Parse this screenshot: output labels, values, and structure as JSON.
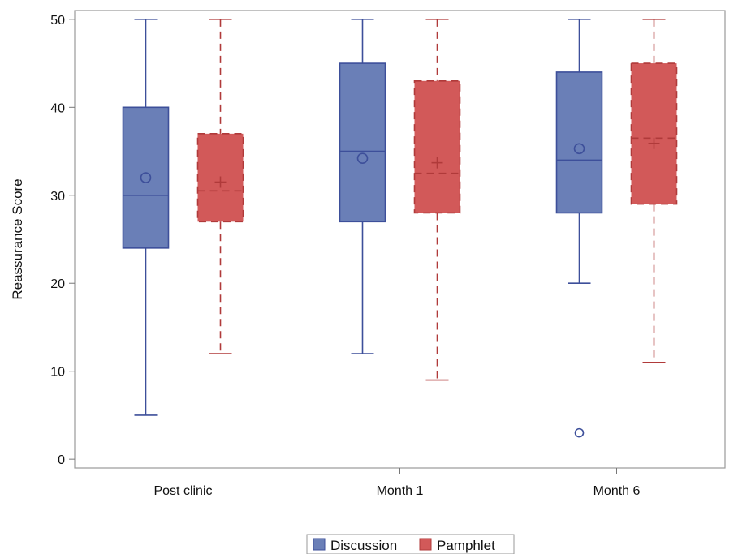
{
  "chart_data": {
    "type": "box",
    "ylabel": "Reassurance Score",
    "xlabel": "",
    "ylim": [
      -1,
      51
    ],
    "yticks": [
      0,
      10,
      20,
      30,
      40,
      50
    ],
    "categories": [
      "Post clinic",
      "Month 1",
      "Month 6"
    ],
    "series": [
      {
        "name": "Discussion",
        "color": "#6A7FB7",
        "stroke": "#3D4F9A",
        "line_style": "solid",
        "mean_marker": "circle",
        "boxes": [
          {
            "min": 5,
            "q1": 24,
            "median": 30,
            "q3": 40,
            "max": 50,
            "mean": 32,
            "outliers": []
          },
          {
            "min": 12,
            "q1": 27,
            "median": 35,
            "q3": 45,
            "max": 50,
            "mean": 34.2,
            "outliers": []
          },
          {
            "min": 20,
            "q1": 28,
            "median": 34,
            "q3": 44,
            "max": 50,
            "mean": 35.3,
            "outliers": [
              3
            ]
          }
        ]
      },
      {
        "name": "Pamphlet",
        "color": "#D25959",
        "stroke": "#B03A3A",
        "line_style": "dashed",
        "mean_marker": "plus",
        "boxes": [
          {
            "min": 12,
            "q1": 27,
            "median": 30.5,
            "q3": 37,
            "max": 50,
            "mean": 31.5,
            "outliers": []
          },
          {
            "min": 9,
            "q1": 28,
            "median": 32.5,
            "q3": 43,
            "max": 50,
            "mean": 33.7,
            "outliers": []
          },
          {
            "min": 11,
            "q1": 29,
            "median": 36.5,
            "q3": 45,
            "max": 50,
            "mean": 35.9,
            "outliers": []
          }
        ]
      }
    ],
    "legend_position": "bottom-center",
    "grid": false
  }
}
